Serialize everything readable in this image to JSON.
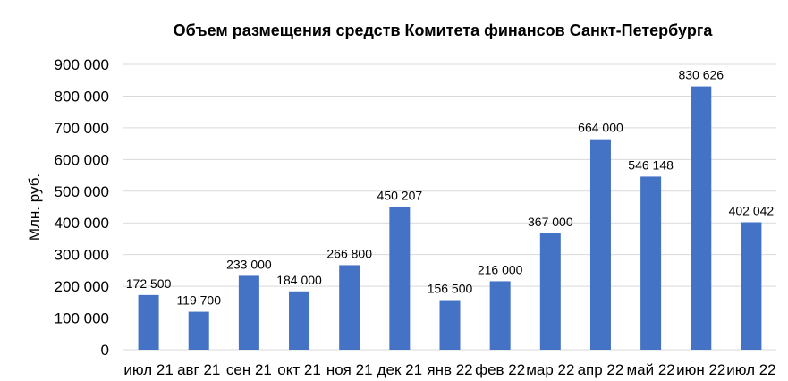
{
  "chart_data": {
    "type": "bar",
    "title": "Объем размещения  средств Комитета финансов Санкт-Петербурга",
    "xlabel": "",
    "ylabel": "Млн. руб.",
    "ylim": [
      0,
      900000
    ],
    "yticks": [
      0,
      100000,
      200000,
      300000,
      400000,
      500000,
      600000,
      700000,
      800000,
      900000
    ],
    "ytick_labels": [
      "0",
      "100 000",
      "200 000",
      "300 000",
      "400 000",
      "500 000",
      "600 000",
      "700 000",
      "800 000",
      "900 000"
    ],
    "grid": true,
    "legend": "none",
    "bar_color": "#4472C4",
    "categories": [
      "июл 21",
      "авг 21",
      "сен 21",
      "окт 21",
      "ноя 21",
      "дек 21",
      "янв 22",
      "фев 22",
      "мар 22",
      "апр 22",
      "май 22",
      "июн 22",
      "июл 22"
    ],
    "values": [
      172500,
      119700,
      233000,
      184000,
      266800,
      450207,
      156500,
      216000,
      367000,
      664000,
      546148,
      830626,
      402042
    ],
    "data_labels": [
      "172 500",
      "119 700",
      "233 000",
      "184 000",
      "266 800",
      "450 207",
      "156 500",
      "216 000",
      "367 000",
      "664 000",
      "546 148",
      "830 626",
      "402 042"
    ]
  }
}
